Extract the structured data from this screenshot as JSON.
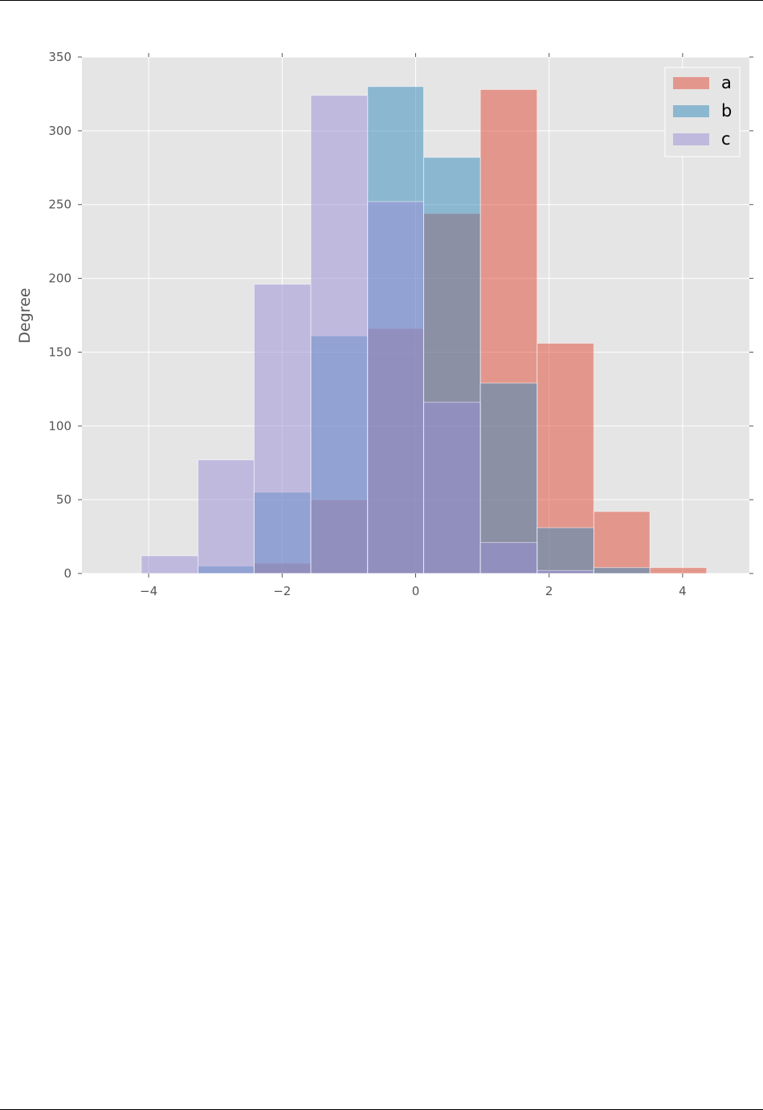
{
  "chart_data": {
    "type": "bar",
    "title": "",
    "xlabel": "",
    "ylabel": "Degree",
    "xlim": [
      -5,
      5
    ],
    "ylim": [
      0,
      350
    ],
    "xticks": [
      -4,
      -2,
      0,
      2,
      4
    ],
    "xtick_labels": [
      "−4",
      "−2",
      "0",
      "2",
      "4"
    ],
    "yticks": [
      0,
      50,
      100,
      150,
      200,
      250,
      300,
      350
    ],
    "ytick_labels": [
      "0",
      "50",
      "100",
      "150",
      "200",
      "250",
      "300",
      "350"
    ],
    "grid": true,
    "legend_position": "top-right",
    "stacked": false,
    "alpha": 0.5,
    "series": [
      {
        "name": "a",
        "color": "#E24A33",
        "bins": [
          {
            "x0": -2.42,
            "x1": -1.57,
            "count": 7
          },
          {
            "x0": -1.57,
            "x1": -0.72,
            "count": 50
          },
          {
            "x0": -0.72,
            "x1": 0.12,
            "count": 166
          },
          {
            "x0": 0.12,
            "x1": 0.97,
            "count": 244
          },
          {
            "x0": 0.97,
            "x1": 1.82,
            "count": 328
          },
          {
            "x0": 1.82,
            "x1": 2.67,
            "count": 156
          },
          {
            "x0": 2.67,
            "x1": 3.51,
            "count": 42
          },
          {
            "x0": 3.51,
            "x1": 4.36,
            "count": 4
          }
        ]
      },
      {
        "name": "b",
        "color": "#348ABD",
        "bins": [
          {
            "x0": -3.26,
            "x1": -2.42,
            "count": 5
          },
          {
            "x0": -2.42,
            "x1": -1.57,
            "count": 55
          },
          {
            "x0": -1.57,
            "x1": -0.72,
            "count": 161
          },
          {
            "x0": -0.72,
            "x1": 0.12,
            "count": 330
          },
          {
            "x0": 0.12,
            "x1": 0.97,
            "count": 282
          },
          {
            "x0": 0.97,
            "x1": 1.82,
            "count": 129
          },
          {
            "x0": 1.82,
            "x1": 2.67,
            "count": 31
          },
          {
            "x0": 2.67,
            "x1": 3.51,
            "count": 4
          }
        ]
      },
      {
        "name": "c",
        "color": "#988ED5",
        "bins": [
          {
            "x0": -4.11,
            "x1": -3.26,
            "count": 12
          },
          {
            "x0": -3.26,
            "x1": -2.42,
            "count": 77
          },
          {
            "x0": -2.42,
            "x1": -1.57,
            "count": 196
          },
          {
            "x0": -1.57,
            "x1": -0.72,
            "count": 324
          },
          {
            "x0": -0.72,
            "x1": 0.12,
            "count": 252
          },
          {
            "x0": 0.12,
            "x1": 0.97,
            "count": 116
          },
          {
            "x0": 0.97,
            "x1": 1.82,
            "count": 21
          },
          {
            "x0": 1.82,
            "x1": 2.67,
            "count": 2
          }
        ]
      }
    ]
  }
}
